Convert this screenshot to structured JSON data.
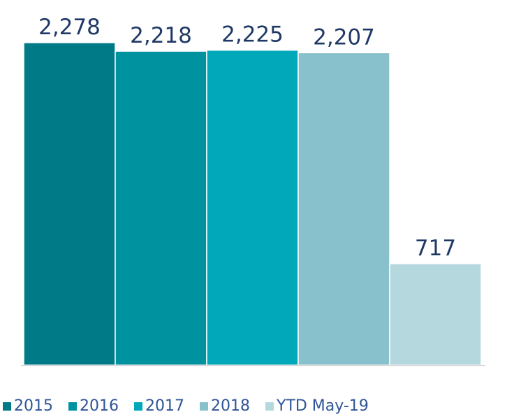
{
  "chart_data": {
    "type": "bar",
    "categories": [
      null
    ],
    "series": [
      {
        "name": "2015",
        "color": "#007a87",
        "values": [
          2278
        ],
        "value_labels": [
          "2,278"
        ]
      },
      {
        "name": "2016",
        "color": "#00929f",
        "values": [
          2218
        ],
        "value_labels": [
          "2,218"
        ]
      },
      {
        "name": "2017",
        "color": "#00a8b9",
        "values": [
          2225
        ],
        "value_labels": [
          "2,225"
        ]
      },
      {
        "name": "2018",
        "color": "#88c0cb",
        "values": [
          2207
        ],
        "value_labels": [
          "2,207"
        ]
      },
      {
        "name": "YTD May-19",
        "color": "#b5d8df",
        "values": [
          717
        ],
        "value_labels": [
          "717"
        ]
      }
    ],
    "legend": "bottom"
  }
}
